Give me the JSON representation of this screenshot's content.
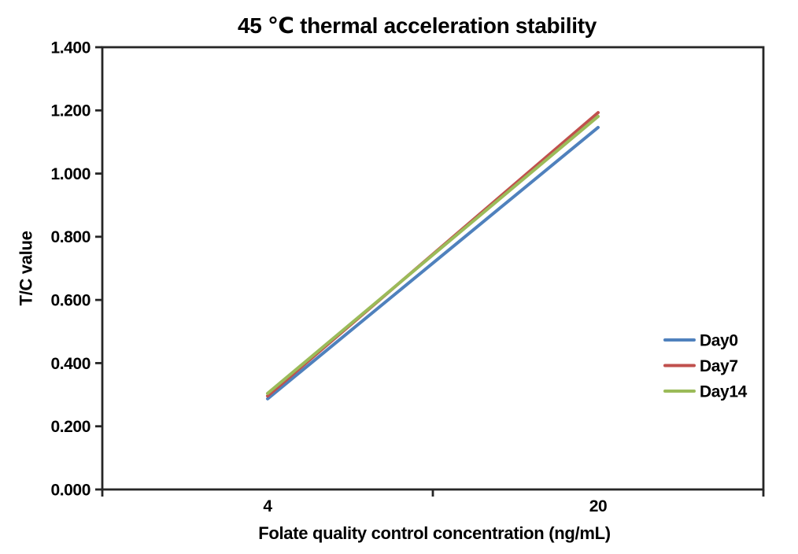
{
  "chart_data": {
    "type": "line",
    "title": "45 ℃ thermal acceleration stability",
    "xlabel": "Folate quality control concentration (ng/mL)",
    "ylabel": "T/C value",
    "categories": [
      "4",
      "20"
    ],
    "series": [
      {
        "name": "Day0",
        "color": "#4F81BD",
        "values": [
          0.287,
          1.146
        ]
      },
      {
        "name": "Day7",
        "color": "#C0504D",
        "values": [
          0.296,
          1.193
        ]
      },
      {
        "name": "Day14",
        "color": "#9BBB59",
        "values": [
          0.304,
          1.181
        ]
      }
    ],
    "ylim": [
      0.0,
      1.4
    ],
    "ytick_labels": [
      "0.000",
      "0.200",
      "0.400",
      "0.600",
      "0.800",
      "1.000",
      "1.200",
      "1.400"
    ],
    "grid": false,
    "plot_border": true,
    "legend_position": "inside-right",
    "axis_color": "#262626",
    "text_color": "#000000",
    "background_color": "#ffffff"
  }
}
